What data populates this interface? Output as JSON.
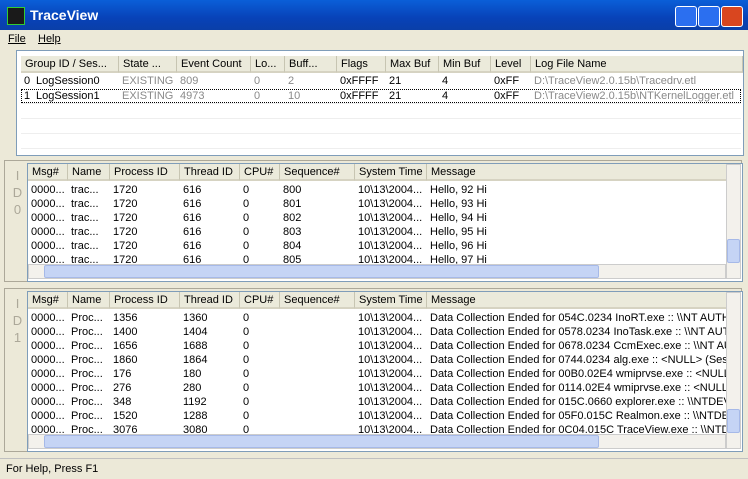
{
  "window": {
    "title": "TraceView"
  },
  "menu": [
    "File",
    "Help"
  ],
  "sessions": {
    "headers": [
      "Group ID / Ses...",
      "State ...",
      "Event Count",
      "Lo...",
      "Buff...",
      "Flags",
      "Max Buf",
      "Min Buf",
      "Level",
      "Log File Name"
    ],
    "rows": [
      [
        "0",
        "LogSession0",
        "EXISTING",
        "809",
        "0",
        "2",
        "0xFFFF",
        "21",
        "4",
        "0xFF",
        "D:\\TraceView2.0.15b\\Tracedrv.etl"
      ],
      [
        "1",
        "LogSession1",
        "EXISTING",
        "4973",
        "0",
        "10",
        "0xFFFF",
        "21",
        "4",
        "0xFF",
        "D:\\TraceView2.0.15b\\NTKernelLogger.etl"
      ]
    ]
  },
  "panels": [
    {
      "side_label": "ID0",
      "headers": [
        "Msg#",
        "Name",
        "Process ID",
        "Thread ID",
        "CPU#",
        "Sequence#",
        "System Time",
        "Message"
      ],
      "rows": [
        [
          "0000...",
          "trac...",
          "1720",
          "616",
          "0",
          "800",
          "10\\13\\2004...",
          "Hello, 92 Hi"
        ],
        [
          "0000...",
          "trac...",
          "1720",
          "616",
          "0",
          "801",
          "10\\13\\2004...",
          "Hello, 93 Hi"
        ],
        [
          "0000...",
          "trac...",
          "1720",
          "616",
          "0",
          "802",
          "10\\13\\2004...",
          "Hello, 94 Hi"
        ],
        [
          "0000...",
          "trac...",
          "1720",
          "616",
          "0",
          "803",
          "10\\13\\2004...",
          "Hello, 95 Hi"
        ],
        [
          "0000...",
          "trac...",
          "1720",
          "616",
          "0",
          "804",
          "10\\13\\2004...",
          "Hello, 96 Hi"
        ],
        [
          "0000...",
          "trac...",
          "1720",
          "616",
          "0",
          "805",
          "10\\13\\2004...",
          "Hello, 97 Hi"
        ]
      ]
    },
    {
      "side_label": "ID1",
      "headers": [
        "Msg#",
        "Name",
        "Process ID",
        "Thread ID",
        "CPU#",
        "Sequence#",
        "System Time",
        "Message"
      ],
      "rows": [
        [
          "0000...",
          "Proc...",
          "1356",
          "1360",
          "0",
          null,
          "10\\13\\2004...",
          "Data Collection Ended for 054C.0234 InoRT.exe :: \\\\NT AUTH"
        ],
        [
          "0000...",
          "Proc...",
          "1400",
          "1404",
          "0",
          null,
          "10\\13\\2004...",
          "Data Collection Ended for 0578.0234 InoTask.exe :: \\\\NT AUT"
        ],
        [
          "0000...",
          "Proc...",
          "1656",
          "1688",
          "0",
          null,
          "10\\13\\2004...",
          "Data Collection Ended for 0678.0234 CcmExec.exe :: \\\\NT AU"
        ],
        [
          "0000...",
          "Proc...",
          "1860",
          "1864",
          "0",
          null,
          "10\\13\\2004...",
          "Data Collection Ended for 0744.0234 alg.exe :: <NULL> (Sess"
        ],
        [
          "0000...",
          "Proc...",
          "176",
          "180",
          "0",
          null,
          "10\\13\\2004...",
          "Data Collection Ended for 00B0.02E4 wmiprvse.exe :: <NULL>"
        ],
        [
          "0000...",
          "Proc...",
          "276",
          "280",
          "0",
          null,
          "10\\13\\2004...",
          "Data Collection Ended for 0114.02E4 wmiprvse.exe :: <NULL:"
        ],
        [
          "0000...",
          "Proc...",
          "348",
          "1192",
          "0",
          null,
          "10\\13\\2004...",
          "Data Collection Ended for 015C.0660 explorer.exe :: \\\\NTDEV"
        ],
        [
          "0000...",
          "Proc...",
          "1520",
          "1288",
          "0",
          null,
          "10\\13\\2004...",
          "Data Collection Ended for 05F0.015C Realmon.exe :: \\\\NTDEV"
        ],
        [
          "0000...",
          "Proc...",
          "3076",
          "3080",
          "0",
          null,
          "10\\13\\2004...",
          "Data Collection Ended for 0C04.015C TraceView.exe :: \\\\NTDI"
        ]
      ]
    }
  ],
  "status": "For Help, Press F1"
}
